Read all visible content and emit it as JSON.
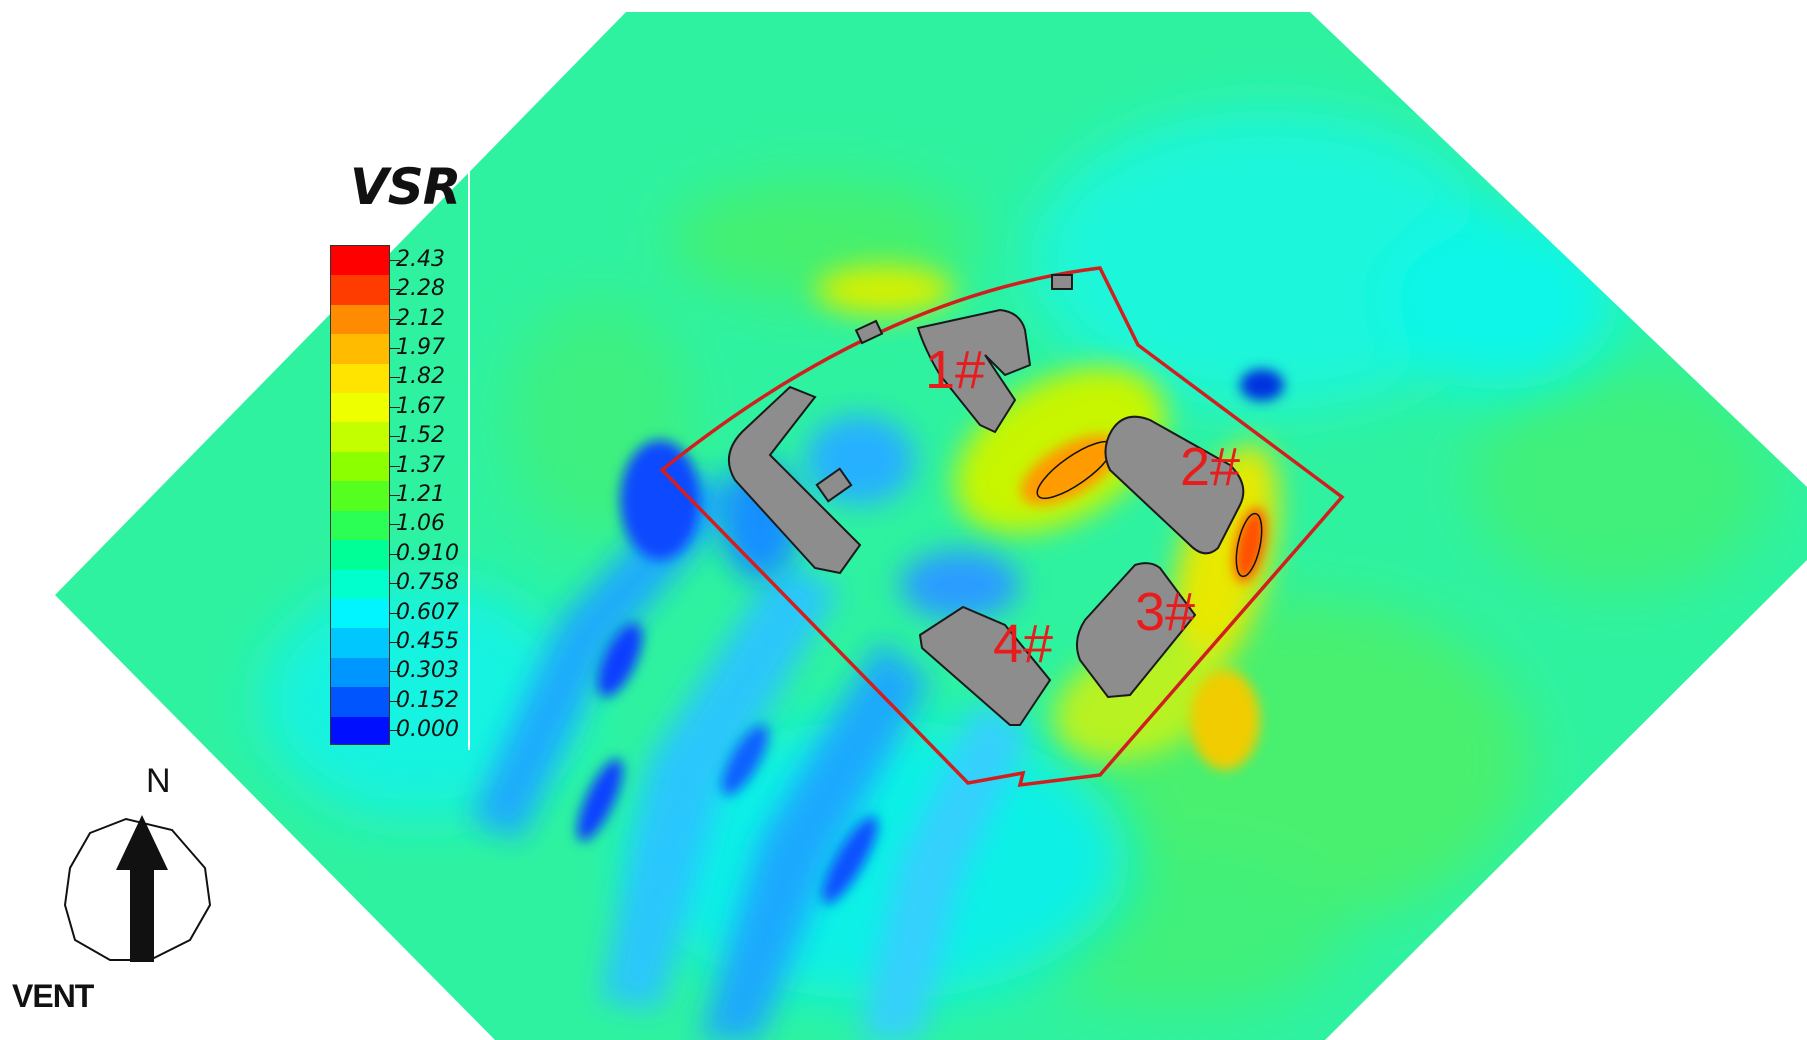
{
  "legend": {
    "title": "VSR",
    "levels": [
      {
        "label": "2.43",
        "color": "#ff0000"
      },
      {
        "label": "2.28",
        "color": "#ff3c00"
      },
      {
        "label": "2.12",
        "color": "#ff8c00"
      },
      {
        "label": "1.97",
        "color": "#ffbb00"
      },
      {
        "label": "1.82",
        "color": "#ffe400"
      },
      {
        "label": "1.67",
        "color": "#eeff00"
      },
      {
        "label": "1.52",
        "color": "#c4ff00"
      },
      {
        "label": "1.37",
        "color": "#8cff00"
      },
      {
        "label": "1.21",
        "color": "#55ff20"
      },
      {
        "label": "1.06",
        "color": "#2bff55"
      },
      {
        "label": "0.910",
        "color": "#00ff96"
      },
      {
        "label": "0.758",
        "color": "#00ffcc"
      },
      {
        "label": "0.607",
        "color": "#00f5ff"
      },
      {
        "label": "0.455",
        "color": "#00c8ff"
      },
      {
        "label": "0.303",
        "color": "#0096ff"
      },
      {
        "label": "0.152",
        "color": "#0055ff"
      },
      {
        "label": "0.000",
        "color": "#0010ff"
      }
    ]
  },
  "compass": {
    "north_label": "N",
    "wind_label": "VENT"
  },
  "buildings": [
    {
      "label": "1#"
    },
    {
      "label": "2#"
    },
    {
      "label": "3#"
    },
    {
      "label": "4#"
    }
  ],
  "colors": {
    "ambient": "#2ff2a0",
    "site_boundary": "#d11f1f",
    "building_fill": "#8d8d8d",
    "label_red": "#e81c1c"
  }
}
